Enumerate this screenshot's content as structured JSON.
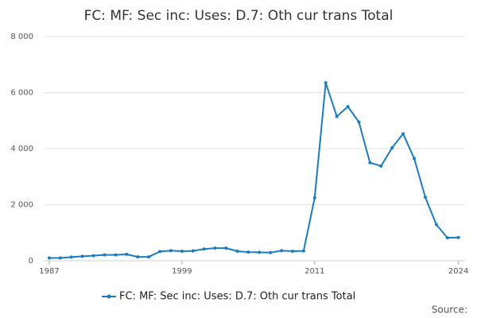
{
  "chart_data": {
    "type": "line",
    "title": "FC: MF: Sec inc: Uses: D.7: Oth cur trans Total",
    "x": [
      1987,
      1988,
      1989,
      1990,
      1991,
      1992,
      1993,
      1994,
      1995,
      1996,
      1997,
      1998,
      1999,
      2000,
      2001,
      2002,
      2003,
      2004,
      2005,
      2006,
      2007,
      2008,
      2009,
      2010,
      2011,
      2012,
      2013,
      2014,
      2015,
      2016,
      2017,
      2018,
      2019,
      2020,
      2021,
      2022,
      2023,
      2024
    ],
    "series": [
      {
        "name": "FC: MF: Sec inc: Uses: D.7: Oth cur trans Total",
        "color": "#1a7bbf",
        "values": [
          100,
          100,
          130,
          160,
          180,
          210,
          210,
          230,
          140,
          140,
          330,
          360,
          340,
          350,
          420,
          450,
          450,
          340,
          310,
          300,
          290,
          360,
          340,
          350,
          2250,
          6350,
          5150,
          5500,
          4950,
          3500,
          3380,
          4030,
          4530,
          3650,
          2270,
          1290,
          820,
          830
        ]
      }
    ],
    "xlim": [
      1986.5,
      2024.6
    ],
    "xticks": [
      1987,
      1999,
      2011,
      2024
    ],
    "ylim": [
      0,
      8000
    ],
    "yticks": [
      0,
      {
        "value": 2000,
        "label": "2 000"
      },
      {
        "value": 4000,
        "label": "4 000"
      },
      {
        "value": 6000,
        "label": "6 000"
      },
      {
        "value": 8000,
        "label": "8 000"
      }
    ],
    "grid": true,
    "legend": "bottom",
    "source": "Source:"
  }
}
